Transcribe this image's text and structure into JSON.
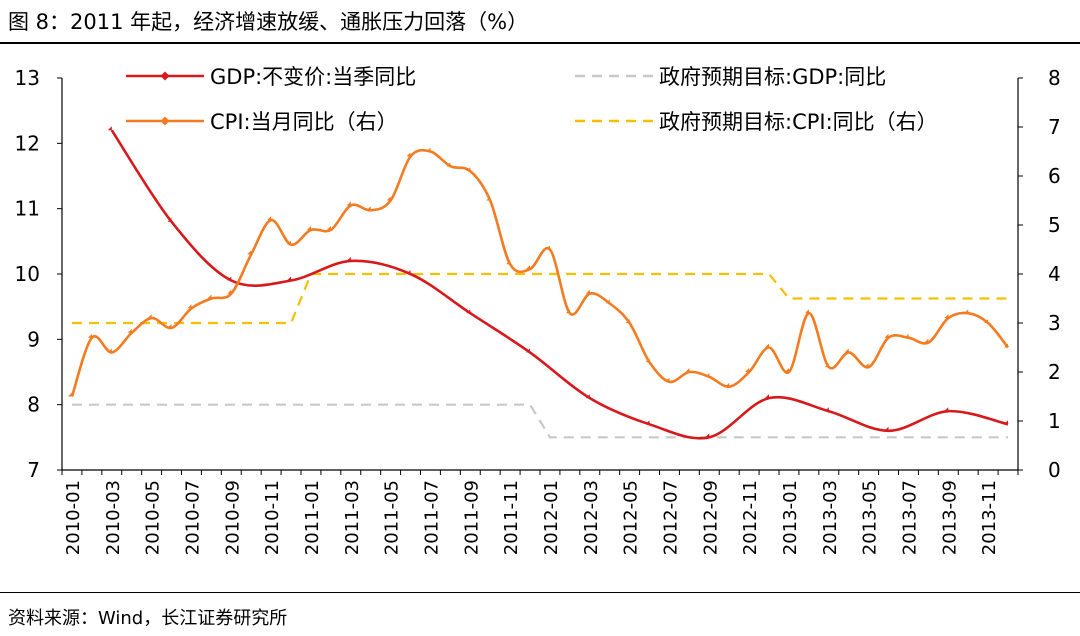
{
  "title": "图 8：2011 年起，经济增速放缓、通胀压力回落（%）",
  "source": "资料来源：Wind，长江证券研究所",
  "chart_data": {
    "type": "line",
    "categories": [
      "2010-01",
      "2010-02",
      "2010-03",
      "2010-04",
      "2010-05",
      "2010-06",
      "2010-07",
      "2010-08",
      "2010-09",
      "2010-10",
      "2010-11",
      "2010-12",
      "2011-01",
      "2011-02",
      "2011-03",
      "2011-04",
      "2011-05",
      "2011-06",
      "2011-07",
      "2011-08",
      "2011-09",
      "2011-10",
      "2011-11",
      "2011-12",
      "2012-01",
      "2012-02",
      "2012-03",
      "2012-04",
      "2012-05",
      "2012-06",
      "2012-07",
      "2012-08",
      "2012-09",
      "2012-10",
      "2012-11",
      "2012-12",
      "2013-01",
      "2013-02",
      "2013-03",
      "2013-04",
      "2013-05",
      "2013-06",
      "2013-07",
      "2013-08",
      "2013-09",
      "2013-10",
      "2013-11",
      "2013-12"
    ],
    "x_tick_labels": [
      "2010-01",
      "2010-03",
      "2010-05",
      "2010-07",
      "2010-09",
      "2010-11",
      "2011-01",
      "2011-03",
      "2011-05",
      "2011-07",
      "2011-09",
      "2011-11",
      "2012-01",
      "2012-03",
      "2012-05",
      "2012-07",
      "2012-09",
      "2012-11",
      "2013-01",
      "2013-03",
      "2013-05",
      "2013-07",
      "2013-09",
      "2013-11"
    ],
    "y_left": {
      "range": [
        7,
        13
      ],
      "ticks": [
        "7",
        "8",
        "9",
        "10",
        "11",
        "12",
        "13"
      ]
    },
    "y_right": {
      "range": [
        0,
        8
      ],
      "ticks": [
        "0",
        "1",
        "2",
        "3",
        "4",
        "5",
        "6",
        "7",
        "8"
      ]
    },
    "series": [
      {
        "name": "GDP:不变价:当季同比",
        "axis": "left",
        "color": "#d7191c",
        "style": "solid",
        "marker": "diamond",
        "values": [
          null,
          null,
          12.2,
          null,
          null,
          10.8,
          null,
          null,
          9.9,
          null,
          null,
          9.9,
          null,
          null,
          10.2,
          null,
          null,
          10.0,
          null,
          null,
          9.4,
          null,
          null,
          8.8,
          null,
          null,
          8.1,
          null,
          null,
          7.7,
          null,
          null,
          7.5,
          null,
          null,
          8.1,
          null,
          null,
          7.9,
          null,
          null,
          7.6,
          null,
          null,
          7.9,
          null,
          null,
          7.7
        ]
      },
      {
        "name": "CPI:当月同比（右）",
        "axis": "right",
        "color": "#f47b20",
        "style": "solid",
        "marker": "diamond",
        "values": [
          1.5,
          2.7,
          2.4,
          2.8,
          3.1,
          2.9,
          3.3,
          3.5,
          3.6,
          4.4,
          5.1,
          4.6,
          4.9,
          4.9,
          5.4,
          5.3,
          5.5,
          6.4,
          6.5,
          6.2,
          6.1,
          5.5,
          4.2,
          4.1,
          4.5,
          3.2,
          3.6,
          3.4,
          3.0,
          2.2,
          1.8,
          2.0,
          1.9,
          1.7,
          2.0,
          2.5,
          2.0,
          3.2,
          2.1,
          2.4,
          2.1,
          2.7,
          2.7,
          2.6,
          3.1,
          3.2,
          3.0,
          2.5
        ]
      },
      {
        "name": "政府预期目标:GDP:同比",
        "axis": "left",
        "color": "#c8c8c8",
        "style": "dashed",
        "marker": "none",
        "values": [
          8,
          8,
          8,
          8,
          8,
          8,
          8,
          8,
          8,
          8,
          8,
          8,
          8,
          8,
          8,
          8,
          8,
          8,
          8,
          8,
          8,
          8,
          8,
          8,
          7.5,
          7.5,
          7.5,
          7.5,
          7.5,
          7.5,
          7.5,
          7.5,
          7.5,
          7.5,
          7.5,
          7.5,
          7.5,
          7.5,
          7.5,
          7.5,
          7.5,
          7.5,
          7.5,
          7.5,
          7.5,
          7.5,
          7.5,
          7.5
        ]
      },
      {
        "name": "政府预期目标:CPI:同比（右）",
        "axis": "right",
        "color": "#f5c000",
        "style": "dashed",
        "marker": "none",
        "values": [
          3,
          3,
          3,
          3,
          3,
          3,
          3,
          3,
          3,
          3,
          3,
          3,
          4,
          4,
          4,
          4,
          4,
          4,
          4,
          4,
          4,
          4,
          4,
          4,
          4,
          4,
          4,
          4,
          4,
          4,
          4,
          4,
          4,
          4,
          4,
          4,
          3.5,
          3.5,
          3.5,
          3.5,
          3.5,
          3.5,
          3.5,
          3.5,
          3.5,
          3.5,
          3.5,
          3.5
        ]
      }
    ],
    "legend": "top, inside plot, two columns"
  }
}
